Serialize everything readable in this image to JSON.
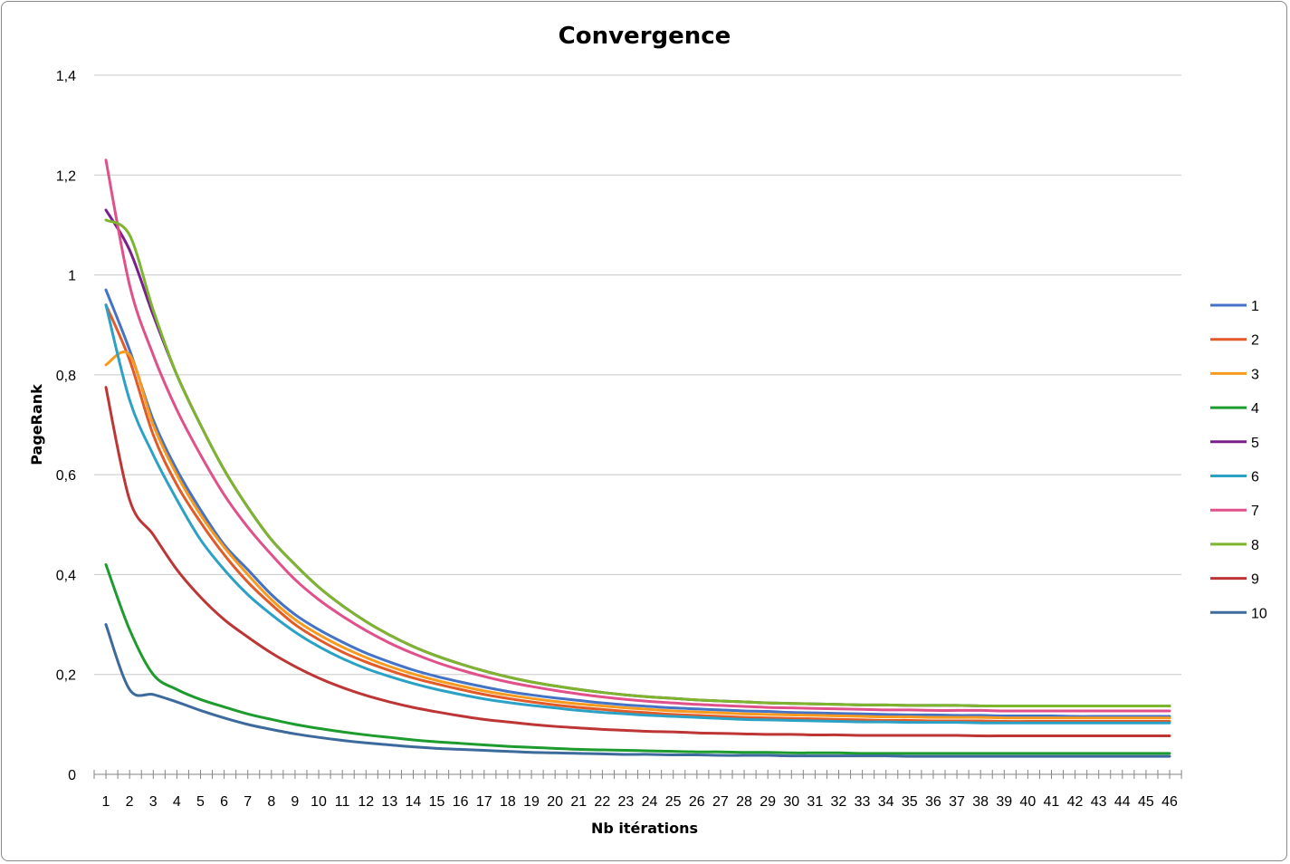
{
  "chart_data": {
    "type": "line",
    "title": "Convergence",
    "xlabel": "Nb itérations",
    "ylabel": "PageRank",
    "ylim": [
      0,
      1.4
    ],
    "y_ticks": [
      "0",
      "0,2",
      "0,4",
      "0,6",
      "0,8",
      "1",
      "1,2",
      "1,4"
    ],
    "y_tick_values": [
      0,
      0.2,
      0.4,
      0.6,
      0.8,
      1.0,
      1.2,
      1.4
    ],
    "categories": [
      "1",
      "2",
      "3",
      "4",
      "5",
      "6",
      "7",
      "8",
      "9",
      "10",
      "11",
      "12",
      "13",
      "14",
      "15",
      "16",
      "17",
      "18",
      "19",
      "20",
      "21",
      "22",
      "23",
      "24",
      "25",
      "26",
      "27",
      "28",
      "29",
      "30",
      "31",
      "32",
      "33",
      "34",
      "35",
      "36",
      "37",
      "38",
      "39",
      "40",
      "41",
      "42",
      "43",
      "44",
      "45",
      "46"
    ],
    "grid": true,
    "legend_position": "right",
    "series": [
      {
        "name": "1",
        "color": "#4472C4",
        "values": [
          0.97,
          0.85,
          0.71,
          0.61,
          0.53,
          0.46,
          0.41,
          0.36,
          0.32,
          0.29,
          0.265,
          0.243,
          0.225,
          0.209,
          0.196,
          0.185,
          0.175,
          0.166,
          0.159,
          0.153,
          0.148,
          0.143,
          0.139,
          0.136,
          0.133,
          0.131,
          0.129,
          0.127,
          0.126,
          0.124,
          0.123,
          0.122,
          0.121,
          0.12,
          0.119,
          0.119,
          0.118,
          0.118,
          0.117,
          0.117,
          0.117,
          0.116,
          0.116,
          0.116,
          0.116,
          0.116
        ]
      },
      {
        "name": "2",
        "color": "#E15A28",
        "values": [
          0.94,
          0.83,
          0.68,
          0.58,
          0.505,
          0.44,
          0.385,
          0.34,
          0.3,
          0.27,
          0.245,
          0.225,
          0.208,
          0.193,
          0.181,
          0.17,
          0.16,
          0.152,
          0.145,
          0.139,
          0.134,
          0.13,
          0.126,
          0.123,
          0.12,
          0.118,
          0.116,
          0.114,
          0.113,
          0.112,
          0.111,
          0.11,
          0.109,
          0.108,
          0.108,
          0.107,
          0.107,
          0.107,
          0.106,
          0.106,
          0.106,
          0.106,
          0.106,
          0.106,
          0.106,
          0.106
        ]
      },
      {
        "name": "3",
        "color": "#F79A1E",
        "values": [
          0.82,
          0.84,
          0.7,
          0.6,
          0.52,
          0.455,
          0.4,
          0.35,
          0.31,
          0.28,
          0.255,
          0.234,
          0.216,
          0.201,
          0.188,
          0.177,
          0.167,
          0.159,
          0.152,
          0.146,
          0.141,
          0.137,
          0.133,
          0.13,
          0.127,
          0.125,
          0.123,
          0.121,
          0.12,
          0.119,
          0.118,
          0.117,
          0.116,
          0.115,
          0.115,
          0.114,
          0.114,
          0.114,
          0.113,
          0.113,
          0.113,
          0.113,
          0.113,
          0.113,
          0.113,
          0.113
        ]
      },
      {
        "name": "4",
        "color": "#1E9B2E",
        "values": [
          0.42,
          0.29,
          0.2,
          0.17,
          0.15,
          0.135,
          0.121,
          0.11,
          0.1,
          0.092,
          0.085,
          0.079,
          0.074,
          0.069,
          0.065,
          0.062,
          0.059,
          0.056,
          0.054,
          0.052,
          0.05,
          0.049,
          0.048,
          0.047,
          0.046,
          0.045,
          0.045,
          0.044,
          0.044,
          0.043,
          0.043,
          0.043,
          0.042,
          0.042,
          0.042,
          0.042,
          0.042,
          0.042,
          0.042,
          0.042,
          0.042,
          0.042,
          0.042,
          0.042,
          0.042,
          0.042
        ]
      },
      {
        "name": "5",
        "color": "#7A1F8E",
        "values": [
          1.13,
          1.05,
          0.92,
          0.8,
          0.7,
          0.61,
          0.535,
          0.47,
          0.42,
          0.375,
          0.338,
          0.306,
          0.279,
          0.256,
          0.237,
          0.221,
          0.207,
          0.195,
          0.185,
          0.177,
          0.17,
          0.164,
          0.159,
          0.155,
          0.152,
          0.149,
          0.147,
          0.145,
          0.143,
          0.142,
          0.141,
          0.14,
          0.139,
          0.139,
          0.138,
          0.138,
          0.138,
          0.137,
          0.137,
          0.137,
          0.137,
          0.137,
          0.137,
          0.137,
          0.137,
          0.137
        ]
      },
      {
        "name": "6",
        "color": "#2BA1C6",
        "values": [
          0.94,
          0.75,
          0.64,
          0.55,
          0.47,
          0.41,
          0.36,
          0.32,
          0.285,
          0.256,
          0.232,
          0.212,
          0.196,
          0.182,
          0.17,
          0.16,
          0.151,
          0.144,
          0.138,
          0.133,
          0.128,
          0.124,
          0.121,
          0.118,
          0.116,
          0.114,
          0.112,
          0.11,
          0.109,
          0.108,
          0.107,
          0.106,
          0.105,
          0.105,
          0.104,
          0.104,
          0.104,
          0.103,
          0.103,
          0.103,
          0.103,
          0.103,
          0.103,
          0.103,
          0.103,
          0.103
        ]
      },
      {
        "name": "7",
        "color": "#E0508A",
        "values": [
          1.23,
          0.98,
          0.84,
          0.73,
          0.64,
          0.56,
          0.495,
          0.44,
          0.39,
          0.35,
          0.317,
          0.288,
          0.263,
          0.242,
          0.224,
          0.209,
          0.196,
          0.185,
          0.176,
          0.168,
          0.161,
          0.155,
          0.15,
          0.146,
          0.143,
          0.14,
          0.138,
          0.136,
          0.134,
          0.133,
          0.132,
          0.131,
          0.13,
          0.129,
          0.129,
          0.128,
          0.128,
          0.128,
          0.127,
          0.127,
          0.127,
          0.127,
          0.127,
          0.127,
          0.127,
          0.127
        ]
      },
      {
        "name": "8",
        "color": "#7DB52E",
        "values": [
          1.11,
          1.08,
          0.93,
          0.8,
          0.7,
          0.61,
          0.535,
          0.47,
          0.42,
          0.375,
          0.338,
          0.306,
          0.279,
          0.256,
          0.237,
          0.221,
          0.207,
          0.195,
          0.185,
          0.177,
          0.17,
          0.164,
          0.159,
          0.155,
          0.152,
          0.149,
          0.147,
          0.145,
          0.143,
          0.142,
          0.141,
          0.14,
          0.139,
          0.139,
          0.138,
          0.138,
          0.138,
          0.137,
          0.137,
          0.137,
          0.137,
          0.137,
          0.137,
          0.137,
          0.137,
          0.137
        ]
      },
      {
        "name": "9",
        "color": "#BE3535",
        "values": [
          0.775,
          0.55,
          0.48,
          0.41,
          0.355,
          0.31,
          0.275,
          0.243,
          0.216,
          0.193,
          0.174,
          0.158,
          0.145,
          0.134,
          0.125,
          0.117,
          0.11,
          0.105,
          0.1,
          0.096,
          0.093,
          0.09,
          0.088,
          0.086,
          0.085,
          0.083,
          0.082,
          0.081,
          0.08,
          0.08,
          0.079,
          0.079,
          0.078,
          0.078,
          0.078,
          0.078,
          0.078,
          0.077,
          0.077,
          0.077,
          0.077,
          0.077,
          0.077,
          0.077,
          0.077,
          0.077
        ]
      },
      {
        "name": "10",
        "color": "#3D6A9C",
        "values": [
          0.3,
          0.17,
          0.16,
          0.145,
          0.128,
          0.113,
          0.1,
          0.09,
          0.081,
          0.074,
          0.068,
          0.063,
          0.059,
          0.055,
          0.052,
          0.05,
          0.048,
          0.046,
          0.044,
          0.043,
          0.042,
          0.041,
          0.04,
          0.04,
          0.039,
          0.039,
          0.038,
          0.038,
          0.038,
          0.037,
          0.037,
          0.037,
          0.037,
          0.037,
          0.036,
          0.036,
          0.036,
          0.036,
          0.036,
          0.036,
          0.036,
          0.036,
          0.036,
          0.036,
          0.036,
          0.036
        ]
      }
    ]
  }
}
